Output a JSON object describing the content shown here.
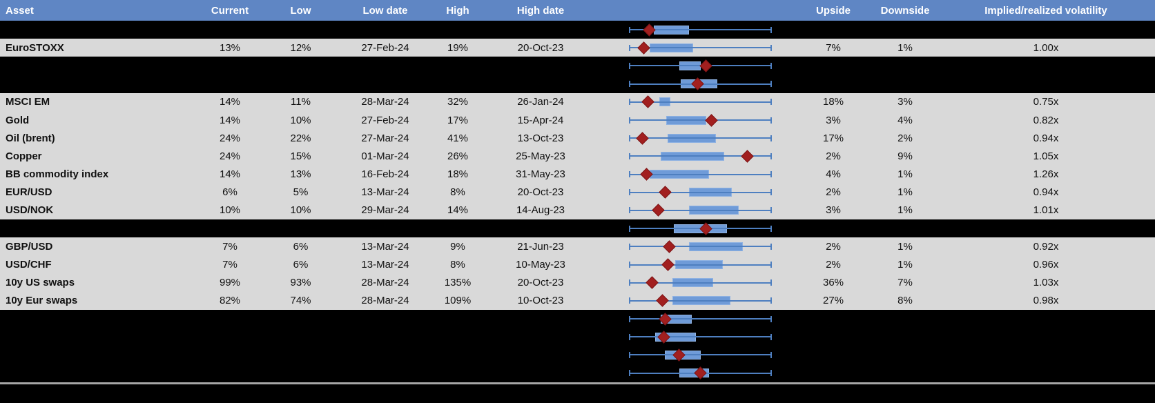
{
  "colors": {
    "header_bg": "#5F86C4",
    "row_bg": "#D9D9D9",
    "spacer_bg": "#000000",
    "whisker": "#4E7FC0",
    "box_fill": "#6F9BD8",
    "box_border": "#8FB2E2",
    "marker": "#A21F1F",
    "marker_border": "#7E1517",
    "separator": "#A6A6A6"
  },
  "header": {
    "asset": "Asset",
    "current": "Current",
    "low": "Low",
    "low_date": "Low date",
    "high": "High",
    "high_date": "High date",
    "range_chart": "",
    "upside": "Upside",
    "downside": "Downside",
    "implied_realized": "Implied/realized volatility"
  },
  "rows": [
    {
      "type": "spacer",
      "range_plot": {
        "box_start": 0.17,
        "box_end": 0.42,
        "marker": 0.14
      }
    },
    {
      "type": "asset",
      "asset": "EuroSTOXX",
      "current": "13%",
      "low": "12%",
      "low_date": "27-Feb-24",
      "high": "19%",
      "high_date": "20-Oct-23",
      "upside": "7%",
      "downside": "1%",
      "implied_realized": "1.00x",
      "range_plot": {
        "box_start": 0.14,
        "box_end": 0.45,
        "marker": 0.1
      }
    },
    {
      "type": "spacer",
      "range_plot": {
        "box_start": 0.35,
        "box_end": 0.5,
        "marker": 0.54
      }
    },
    {
      "type": "spacer",
      "range_plot": {
        "box_start": 0.36,
        "box_end": 0.62,
        "marker": 0.48
      }
    },
    {
      "type": "asset",
      "asset": "MSCI EM",
      "current": "14%",
      "low": "11%",
      "low_date": "28-Mar-24",
      "high": "32%",
      "high_date": "26-Jan-24",
      "upside": "18%",
      "downside": "3%",
      "implied_realized": "0.75x",
      "range_plot": {
        "box_start": 0.21,
        "box_end": 0.29,
        "marker": 0.13
      }
    },
    {
      "type": "asset",
      "asset": "Gold",
      "current": "14%",
      "low": "10%",
      "low_date": "27-Feb-24",
      "high": "17%",
      "high_date": "15-Apr-24",
      "upside": "3%",
      "downside": "4%",
      "implied_realized": "0.82x",
      "range_plot": {
        "box_start": 0.26,
        "box_end": 0.54,
        "marker": 0.58
      }
    },
    {
      "type": "asset",
      "asset": "Oil (brent)",
      "current": "24%",
      "low": "22%",
      "low_date": "27-Mar-24",
      "high": "41%",
      "high_date": "13-Oct-23",
      "upside": "17%",
      "downside": "2%",
      "implied_realized": "0.94x",
      "range_plot": {
        "box_start": 0.27,
        "box_end": 0.61,
        "marker": 0.09
      }
    },
    {
      "type": "asset",
      "asset": "Copper",
      "current": "24%",
      "low": "15%",
      "low_date": "01-Mar-24",
      "high": "26%",
      "high_date": "25-May-23",
      "upside": "2%",
      "downside": "9%",
      "implied_realized": "1.05x",
      "range_plot": {
        "box_start": 0.22,
        "box_end": 0.67,
        "marker": 0.83
      }
    },
    {
      "type": "asset",
      "asset": "BB commodity index",
      "current": "14%",
      "low": "13%",
      "low_date": "16-Feb-24",
      "high": "18%",
      "high_date": "31-May-23",
      "upside": "4%",
      "downside": "1%",
      "implied_realized": "1.26x",
      "range_plot": {
        "box_start": 0.14,
        "box_end": 0.56,
        "marker": 0.12
      }
    },
    {
      "type": "asset",
      "asset": "EUR/USD",
      "current": "6%",
      "low": "5%",
      "low_date": "13-Mar-24",
      "high": "8%",
      "high_date": "20-Oct-23",
      "upside": "2%",
      "downside": "1%",
      "implied_realized": "0.94x",
      "range_plot": {
        "box_start": 0.42,
        "box_end": 0.72,
        "marker": 0.25
      }
    },
    {
      "type": "asset",
      "asset": "USD/NOK",
      "current": "10%",
      "low": "10%",
      "low_date": "29-Mar-24",
      "high": "14%",
      "high_date": "14-Aug-23",
      "upside": "3%",
      "downside": "1%",
      "implied_realized": "1.01x",
      "range_plot": {
        "box_start": 0.42,
        "box_end": 0.77,
        "marker": 0.2
      }
    },
    {
      "type": "spacer",
      "range_plot": {
        "box_start": 0.31,
        "box_end": 0.69,
        "marker": 0.54
      }
    },
    {
      "type": "asset",
      "asset": "GBP/USD",
      "current": "7%",
      "low": "6%",
      "low_date": "13-Mar-24",
      "high": "9%",
      "high_date": "21-Jun-23",
      "upside": "2%",
      "downside": "1%",
      "implied_realized": "0.92x",
      "range_plot": {
        "box_start": 0.42,
        "box_end": 0.8,
        "marker": 0.28
      }
    },
    {
      "type": "asset",
      "asset": "USD/CHF",
      "current": "7%",
      "low": "6%",
      "low_date": "13-Mar-24",
      "high": "8%",
      "high_date": "10-May-23",
      "upside": "2%",
      "downside": "1%",
      "implied_realized": "0.96x",
      "range_plot": {
        "box_start": 0.32,
        "box_end": 0.66,
        "marker": 0.27
      }
    },
    {
      "type": "asset",
      "asset": "10y US swaps",
      "current": "99%",
      "low": "93%",
      "low_date": "28-Mar-24",
      "high": "135%",
      "high_date": "20-Oct-23",
      "upside": "36%",
      "downside": "7%",
      "implied_realized": "1.03x",
      "range_plot": {
        "box_start": 0.3,
        "box_end": 0.59,
        "marker": 0.16
      }
    },
    {
      "type": "asset",
      "asset": "10y Eur swaps",
      "current": "82%",
      "low": "74%",
      "low_date": "28-Mar-24",
      "high": "109%",
      "high_date": "10-Oct-23",
      "upside": "27%",
      "downside": "8%",
      "implied_realized": "0.98x",
      "range_plot": {
        "box_start": 0.3,
        "box_end": 0.71,
        "marker": 0.23
      }
    },
    {
      "type": "spacer",
      "range_plot": {
        "box_start": 0.22,
        "box_end": 0.44,
        "marker": 0.25
      }
    },
    {
      "type": "spacer",
      "range_plot": {
        "box_start": 0.18,
        "box_end": 0.47,
        "marker": 0.24
      }
    },
    {
      "type": "spacer",
      "range_plot": {
        "box_start": 0.25,
        "box_end": 0.5,
        "marker": 0.35
      }
    },
    {
      "type": "spacer",
      "range_plot": {
        "box_start": 0.35,
        "box_end": 0.56,
        "marker": 0.5
      }
    }
  ]
}
